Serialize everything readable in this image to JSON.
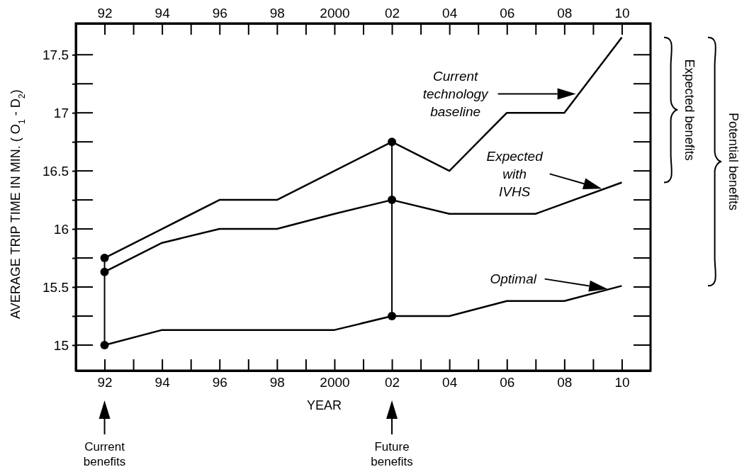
{
  "chart_data": {
    "type": "line",
    "xlabel": "YEAR",
    "ylabel": "AVERAGE TRIP TIME IN MIN. ( O$_{1}$ - D$_{2}$)",
    "xlim": [
      1991,
      2011
    ],
    "ylim": [
      14.78,
      17.77
    ],
    "xticks": [
      {
        "value": 1992,
        "label": "92"
      },
      {
        "value": 1993,
        "label": null
      },
      {
        "value": 1994,
        "label": "94"
      },
      {
        "value": 1995,
        "label": null
      },
      {
        "value": 1996,
        "label": "96"
      },
      {
        "value": 1997,
        "label": null
      },
      {
        "value": 1998,
        "label": "98"
      },
      {
        "value": 1999,
        "label": null
      },
      2000,
      {
        "value": 2001,
        "label": null
      },
      {
        "value": 2002,
        "label": "02"
      },
      {
        "value": 2003,
        "label": null
      },
      {
        "value": 2004,
        "label": "04"
      },
      {
        "value": 2005,
        "label": null
      },
      {
        "value": 2006,
        "label": "06"
      },
      {
        "value": 2007,
        "label": null
      },
      {
        "value": 2008,
        "label": "08"
      },
      {
        "value": 2009,
        "label": null
      },
      {
        "value": 2010,
        "label": "10"
      }
    ],
    "x2lim": [
      1991,
      2011
    ],
    "x2ticks": [
      {
        "value": 1992,
        "label": "92"
      },
      {
        "value": 1993,
        "label": null
      },
      {
        "value": 1994,
        "label": "94"
      },
      {
        "value": 1995,
        "label": null
      },
      {
        "value": 1996,
        "label": "96"
      },
      {
        "value": 1997,
        "label": null
      },
      {
        "value": 1998,
        "label": "98"
      },
      {
        "value": 1999,
        "label": null
      },
      2000,
      {
        "value": 2001,
        "label": null
      },
      {
        "value": 2002,
        "label": "02"
      },
      {
        "value": 2003,
        "label": null
      },
      {
        "value": 2004,
        "label": "04"
      },
      {
        "value": 2005,
        "label": null
      },
      {
        "value": 2006,
        "label": "06"
      },
      {
        "value": 2007,
        "label": null
      },
      {
        "value": 2008,
        "label": "08"
      },
      {
        "value": 2009,
        "label": null
      },
      {
        "value": 2010,
        "label": "10"
      }
    ],
    "yticks": [
      15,
      {
        "value": 15.25,
        "label": null
      },
      15.5,
      {
        "value": 15.75,
        "label": null
      },
      16,
      {
        "value": 16.25,
        "label": null
      },
      16.5,
      {
        "value": 16.75,
        "label": null
      },
      17,
      {
        "value": 17.25,
        "label": null
      },
      17.5
    ],
    "grid": false,
    "marker": "none",
    "line_style": "solid",
    "series": [
      {
        "color": "#000000",
        "x": [
          1992,
          1994,
          1996,
          1998,
          2000,
          2002,
          2004,
          2006,
          2008,
          2010
        ],
        "values": [
          15.75,
          16.0,
          16.25,
          16.25,
          16.5,
          16.75,
          16.5,
          17.0,
          17.0,
          17.65
        ]
      },
      {
        "color": "#000000",
        "x": [
          1992,
          1994,
          1996,
          1998,
          2000,
          2002,
          2004,
          2006,
          2007,
          2010
        ],
        "values": [
          15.63,
          15.88,
          16.0,
          16.0,
          16.13,
          16.25,
          16.13,
          16.13,
          16.13,
          16.4
        ]
      },
      {
        "color": "#000000",
        "x": [
          1992,
          1994,
          1996,
          1998,
          2000,
          2002,
          2004,
          2006,
          2008,
          2010
        ],
        "values": [
          15.0,
          15.13,
          15.13,
          15.13,
          15.13,
          15.25,
          15.25,
          15.38,
          15.38,
          15.51
        ]
      },
      {
        "type": "scatter",
        "marker": "circle",
        "color": "#000000",
        "x": [
          1992,
          1992,
          1992,
          2002,
          2002,
          2002
        ],
        "values": [
          15.75,
          15.63,
          15.0,
          16.75,
          16.25,
          15.25
        ]
      }
    ],
    "annotations": [
      "Current technology baseline",
      "Expected with IVHS",
      "Optimal",
      {
        "text": "Current benefits",
        "x": 1992
      },
      {
        "text": "Future benefits",
        "x": 2002
      },
      "Expected benefits",
      "Potential benefits"
    ]
  }
}
